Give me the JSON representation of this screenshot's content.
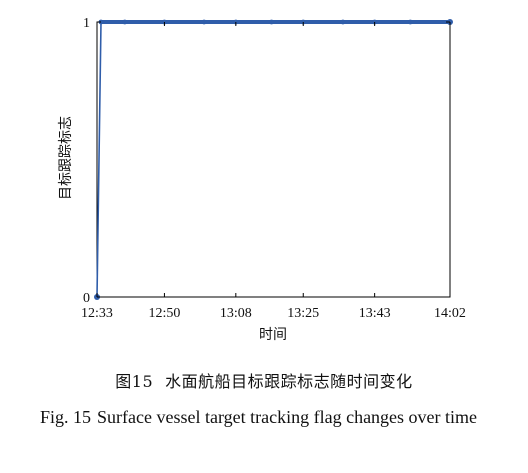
{
  "figure": {
    "caption_cn_number": "图15",
    "caption_cn_text": "水面航船目标跟踪标志随时间变化",
    "caption_en_number": "Fig. 15",
    "caption_en_text": "Surface vessel target tracking flag changes over time"
  },
  "chart_data": {
    "type": "line",
    "xlabel": "时间",
    "ylabel": "目标跟踪标志",
    "x_tick_labels": [
      "12:33",
      "12:50",
      "13:08",
      "13:25",
      "13:43",
      "14:02"
    ],
    "y_tick_labels": [
      "0",
      "1"
    ],
    "xlim": [
      "12:33",
      "14:02"
    ],
    "ylim": [
      0,
      1
    ],
    "grid": false,
    "series": [
      {
        "x": [
          "12:33",
          "12:33",
          "12:34",
          "12:40",
          "12:50",
          "13:00",
          "13:08",
          "13:17",
          "13:25",
          "13:35",
          "13:43",
          "13:52",
          "14:02"
        ],
        "values": [
          0,
          0,
          1,
          1,
          1,
          1,
          1,
          1,
          1,
          1,
          1,
          1,
          1
        ]
      }
    ],
    "colors": {
      "series": "#2f5daa",
      "axis": "#000000"
    }
  }
}
